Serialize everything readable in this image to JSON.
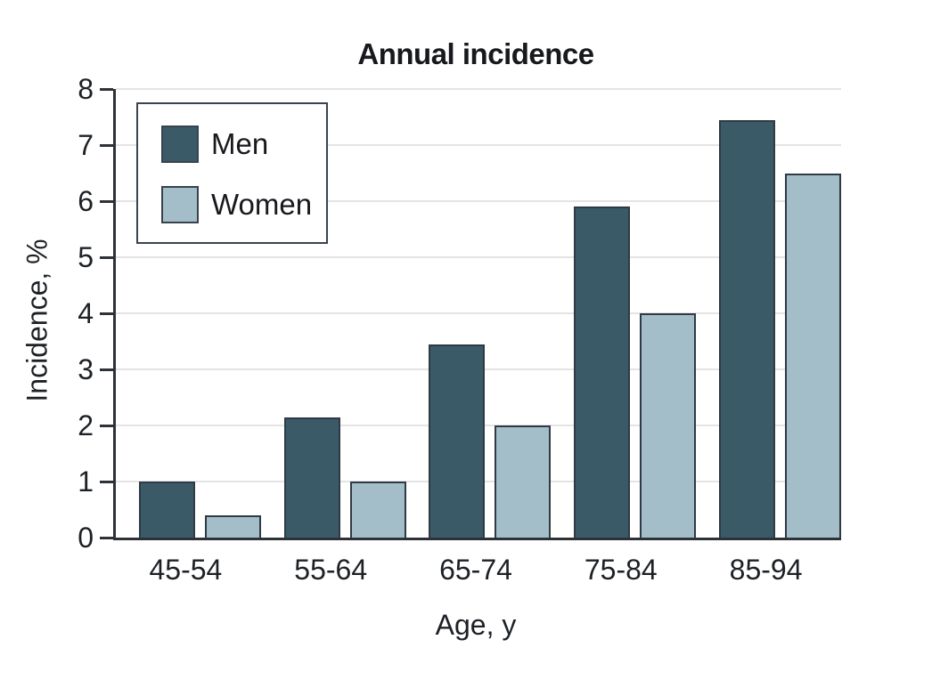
{
  "figure": {
    "title": "Annual incidence"
  },
  "chart_data": {
    "type": "bar",
    "title": "Annual incidence",
    "xlabel": "Age, y",
    "ylabel": "Incidence, %",
    "categories": [
      "45-54",
      "55-64",
      "65-74",
      "75-84",
      "85-94"
    ],
    "series": [
      {
        "name": "Men",
        "color": "#3A5A68",
        "values": [
          1.0,
          2.15,
          3.45,
          5.9,
          7.45
        ]
      },
      {
        "name": "Women",
        "color": "#A4BEC9",
        "values": [
          0.4,
          1.0,
          2.0,
          4.0,
          6.5
        ]
      }
    ],
    "ylim": [
      0,
      8
    ],
    "y_ticks": [
      0,
      1,
      2,
      3,
      4,
      5,
      6,
      7,
      8
    ],
    "grid": true,
    "legend_position": "upper-left",
    "colors": {
      "bar_border": "#2F3A44",
      "axis": "#2D3238",
      "gridline": "#E4E4E4",
      "text": "#1D2126",
      "background": "#FFFFFF"
    }
  }
}
